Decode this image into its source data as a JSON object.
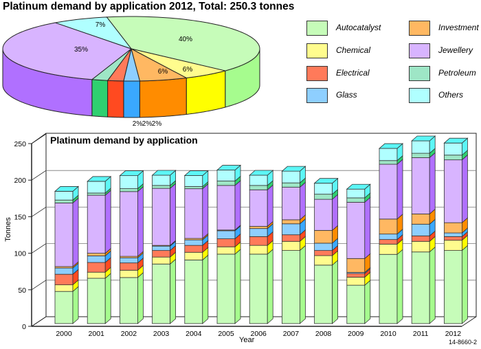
{
  "pie_title": "Platinum demand by application 2012, Total: 250.3 tonnes",
  "bar_title": "Platinum demand by application",
  "figure_code": "14-8660-2",
  "legend": [
    {
      "key": "auto",
      "label": "Autocatalyst",
      "color": "#c6fcb9",
      "side": "#a6fc8e"
    },
    {
      "key": "chem",
      "label": "Chemical",
      "color": "#fffc8e",
      "side": "#ffff00"
    },
    {
      "key": "elec",
      "label": "Electrical",
      "color": "#ff7a5a",
      "side": "#ff4a20"
    },
    {
      "key": "glass",
      "label": "Glass",
      "color": "#8ecfff",
      "side": "#3aa8ff"
    },
    {
      "key": "invest",
      "label": "Investment",
      "color": "#ffb862",
      "side": "#ff8c00"
    },
    {
      "key": "jewel",
      "label": "Jewellery",
      "color": "#d8b4ff",
      "side": "#b070ff"
    },
    {
      "key": "petro",
      "label": "Petroleum",
      "color": "#9ee6c6",
      "side": "#2fd070"
    },
    {
      "key": "others",
      "label": "Others",
      "color": "#b0ffff",
      "side": "#5cf6f6"
    }
  ],
  "chart_data": [
    {
      "type": "pie",
      "title": "Platinum demand by application 2012, Total: 250.3 tonnes",
      "total": 250.3,
      "unit": "tonnes",
      "slices": [
        {
          "key": "auto",
          "label": "Autocatalyst",
          "percent": 40,
          "text": "40%"
        },
        {
          "key": "chem",
          "label": "Chemical",
          "percent": 6,
          "text": "6%"
        },
        {
          "key": "invest",
          "label": "Investment",
          "percent": 6,
          "text": "6%"
        },
        {
          "key": "glass",
          "label": "Glass",
          "percent": 2,
          "text": "2%"
        },
        {
          "key": "elec",
          "label": "Electrical",
          "percent": 2,
          "text": "2%"
        },
        {
          "key": "petro",
          "label": "Petroleum",
          "percent": 2,
          "text": "2%"
        },
        {
          "key": "jewel",
          "label": "Jewellery",
          "percent": 35,
          "text": "35%"
        },
        {
          "key": "others",
          "label": "Others",
          "percent": 7,
          "text": "7%"
        }
      ],
      "legend_placement": "right"
    },
    {
      "type": "bar",
      "stacked": true,
      "title": "Platinum demand by application",
      "xlabel": "Year",
      "ylabel": "Tonnes",
      "ylim": [
        0,
        250
      ],
      "yticks": [
        0,
        50,
        100,
        150,
        200,
        250
      ],
      "grid": true,
      "categories": [
        "2000",
        "2001",
        "2002",
        "2003",
        "2004",
        "2005",
        "2006",
        "2007",
        "2008",
        "2009",
        "2010",
        "2011",
        "2012"
      ],
      "series": [
        {
          "key": "auto",
          "name": "Autocatalyst",
          "values": [
            44,
            62,
            63,
            81.5,
            87,
            95,
            95,
            100,
            80,
            52.5,
            94.7,
            98,
            100
          ]
        },
        {
          "key": "chem",
          "name": "Chemical",
          "values": [
            9,
            8.3,
            10,
            9.5,
            10.5,
            10,
            12,
            12.5,
            13,
            11,
            14,
            14.5,
            14
          ]
        },
        {
          "key": "elec",
          "name": "Electrical",
          "values": [
            14.5,
            13.3,
            10,
            9,
            9.5,
            11,
            12,
            9,
            7,
            5,
            6.3,
            7.5,
            5
          ]
        },
        {
          "key": "glass",
          "name": "Glass",
          "values": [
            8.5,
            9,
            7,
            6,
            7.5,
            11,
            11,
            15,
            10,
            1.5,
            7.5,
            16,
            5
          ]
        },
        {
          "key": "invest",
          "name": "Investment",
          "values": [
            2,
            3.6,
            2,
            1,
            2,
            1,
            3,
            5.5,
            17.5,
            19,
            20.5,
            14,
            14
          ]
        },
        {
          "key": "jewel",
          "name": "Jewellery",
          "values": [
            87,
            79.4,
            88.6,
            78,
            68,
            61,
            50,
            44.5,
            42.5,
            77,
            75,
            77,
            86
          ]
        },
        {
          "key": "petro",
          "name": "Petroleum",
          "values": [
            4,
            3,
            4,
            4,
            3,
            6,
            6,
            6,
            7,
            6,
            5,
            6,
            6.5
          ]
        },
        {
          "key": "others",
          "name": "Others",
          "values": [
            12,
            16,
            17.8,
            14,
            15,
            15,
            14,
            16,
            15,
            12,
            16.6,
            17,
            16.5
          ]
        }
      ]
    }
  ]
}
